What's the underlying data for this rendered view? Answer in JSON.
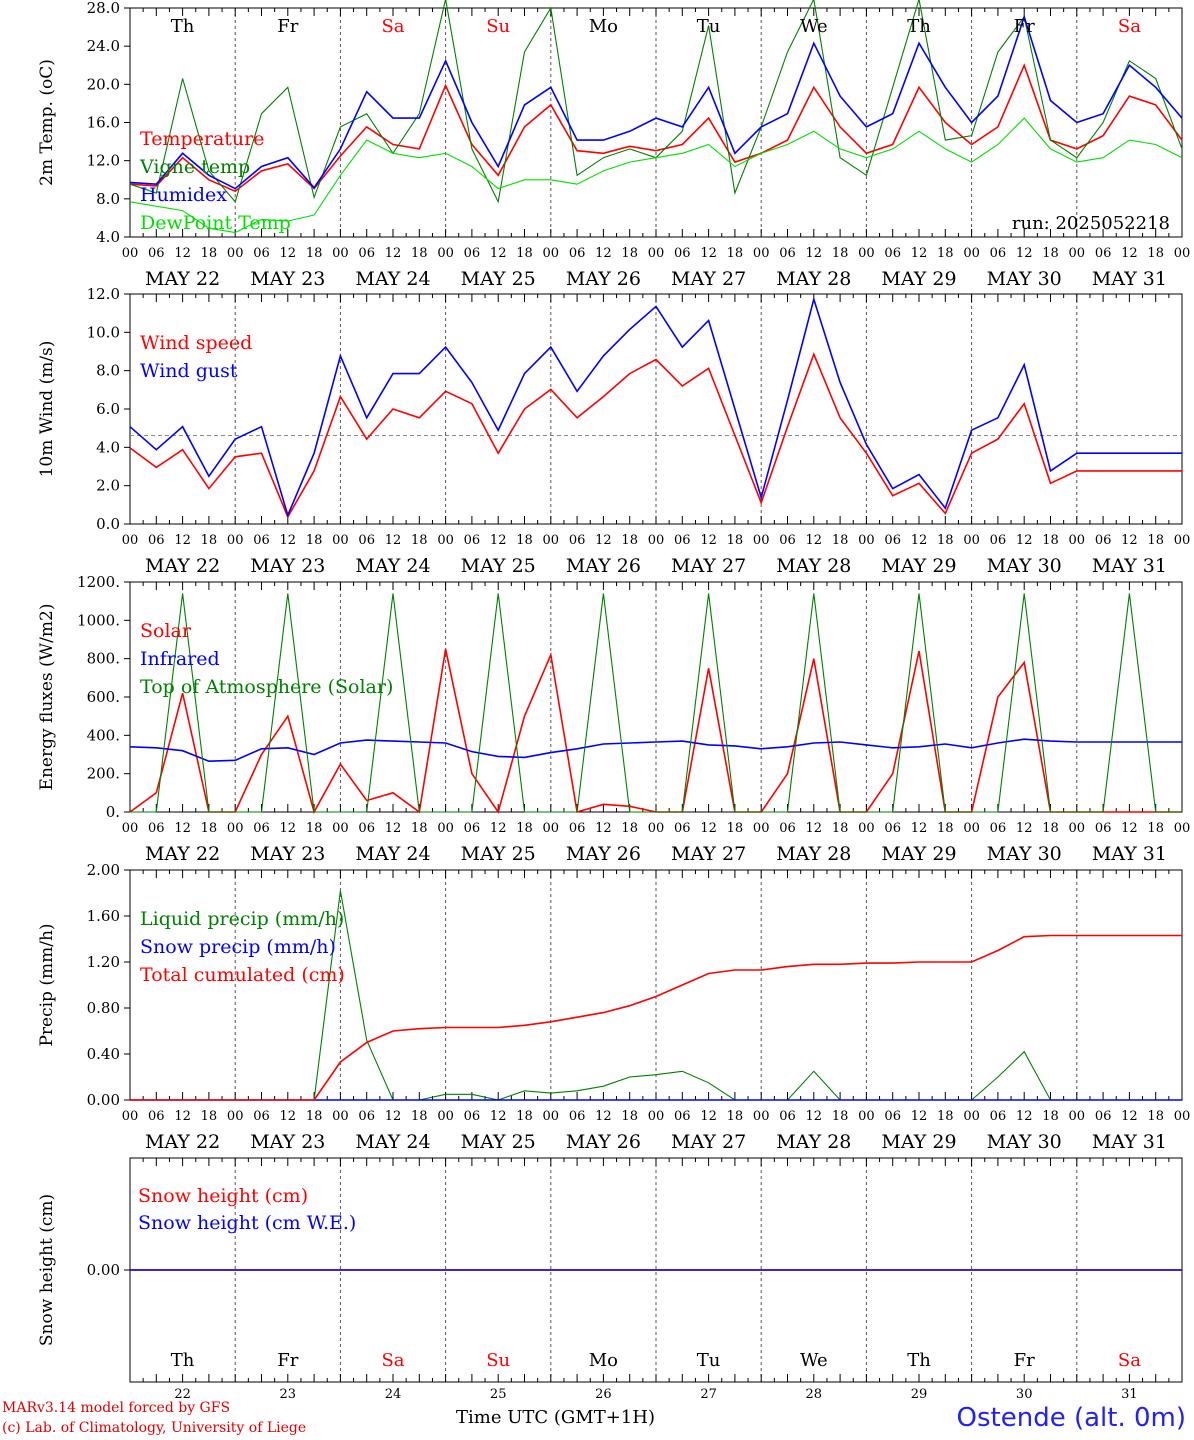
{
  "footer": {
    "model": "MARv3.14 model forced by GFS",
    "lab": "(c) Lab. of Climatology, University of Liege",
    "xaxis_title": "Time UTC (GMT+1H)",
    "station": "Ostende (alt. 0m)"
  },
  "days": {
    "names": [
      "Th",
      "Fr",
      "Sa",
      "Su",
      "Mo",
      "Tu",
      "We",
      "Th",
      "Fr",
      "Sa"
    ],
    "weekend": [
      false,
      false,
      true,
      true,
      false,
      false,
      false,
      false,
      false,
      true
    ],
    "dates": [
      "MAY 22",
      "MAY 23",
      "MAY 24",
      "MAY 25",
      "MAY 26",
      "MAY 27",
      "MAY 28",
      "MAY 29",
      "MAY 30",
      "MAY 31"
    ],
    "daynum": [
      "22",
      "23",
      "24",
      "25",
      "26",
      "27",
      "28",
      "29",
      "30",
      "31"
    ],
    "hour_ticks": [
      "00",
      "06",
      "12",
      "18"
    ]
  },
  "colors": {
    "red": "#ff0000",
    "green": "#008000",
    "blue": "#0000ff",
    "lightgreen": "#00e000",
    "weekend": "#ff0000"
  },
  "chart_data": [
    {
      "type": "line",
      "id": "temp",
      "ylabel": "2m Temp. (oC)",
      "ylim": [
        4,
        30
      ],
      "yticks": [
        "4.0",
        "8.0",
        "12.0",
        "16.0",
        "20.0",
        "24.0",
        "28.0"
      ],
      "annotation": "run: 2025052218",
      "x_hours": [
        0,
        6,
        12,
        18,
        24,
        30,
        36,
        42,
        48,
        54,
        60,
        66,
        72,
        78,
        84,
        90,
        96,
        102,
        108,
        114,
        120,
        126,
        132,
        138,
        144,
        150,
        156,
        162,
        168,
        174,
        180,
        186,
        192,
        198,
        204,
        210,
        216,
        222,
        228,
        234,
        240
      ],
      "series": [
        {
          "name": "Temperature",
          "color": "red",
          "values": [
            10.0,
            9.8,
            13.0,
            10.5,
            9.2,
            11.5,
            12.3,
            9.5,
            13.2,
            16.5,
            14.5,
            14.0,
            21.2,
            14.5,
            11.0,
            16.5,
            19.0,
            13.8,
            13.5,
            14.3,
            13.8,
            14.5,
            17.5,
            12.5,
            13.5,
            15.0,
            21.0,
            16.5,
            13.5,
            14.5,
            21.0,
            17.0,
            14.5,
            16.5,
            23.5,
            15.0,
            14.0,
            15.5,
            20.0,
            19.0,
            15.0
          ]
        },
        {
          "name": "Vigne temp",
          "color": "green",
          "values": [
            10.0,
            9.0,
            22.0,
            11.5,
            8.0,
            18.0,
            21.0,
            8.5,
            16.5,
            18.0,
            13.5,
            18.0,
            31.0,
            14.0,
            8.0,
            25.0,
            30.0,
            11.0,
            13.0,
            14.0,
            13.0,
            16.0,
            28.0,
            9.0,
            16.5,
            25.0,
            31.0,
            13.0,
            11.0,
            21.0,
            31.0,
            15.0,
            15.5,
            25.0,
            29.0,
            15.0,
            13.0,
            17.0,
            24.0,
            22.0,
            14.0
          ]
        },
        {
          "name": "Humidex",
          "color": "blue",
          "values": [
            10.2,
            10.0,
            13.5,
            11.0,
            9.5,
            12.0,
            13.0,
            9.6,
            14.0,
            20.5,
            17.5,
            17.5,
            24.0,
            17.0,
            12.0,
            19.0,
            21.0,
            15.0,
            15.0,
            16.0,
            17.5,
            16.5,
            21.0,
            13.5,
            16.5,
            18.0,
            26.0,
            20.0,
            16.5,
            18.0,
            26.0,
            21.0,
            17.0,
            20.0,
            29.0,
            19.5,
            17.0,
            18.0,
            23.5,
            21.0,
            17.5
          ]
        },
        {
          "name": "DewPoint Temp",
          "color": "lightgreen",
          "values": [
            8.0,
            7.5,
            7.0,
            5.0,
            4.5,
            6.0,
            5.8,
            6.5,
            11.0,
            15.0,
            13.5,
            13.0,
            13.5,
            12.0,
            9.5,
            10.5,
            10.5,
            10.0,
            11.5,
            12.5,
            13.0,
            13.5,
            14.5,
            12.0,
            13.5,
            14.5,
            16.0,
            14.0,
            13.0,
            14.0,
            16.0,
            14.0,
            12.5,
            14.5,
            17.5,
            14.0,
            12.5,
            13.0,
            15.0,
            14.5,
            13.0
          ]
        }
      ]
    },
    {
      "type": "line",
      "id": "wind",
      "ylabel": "10m Wind (m/s)",
      "ylim": [
        0,
        13
      ],
      "yticks": [
        "0.0",
        "2.0",
        "4.0",
        "6.0",
        "8.0",
        "10.0",
        "12.0"
      ],
      "refline": 5.0,
      "x_hours": [
        0,
        6,
        12,
        18,
        24,
        30,
        36,
        42,
        48,
        54,
        60,
        66,
        72,
        78,
        84,
        90,
        96,
        102,
        108,
        114,
        120,
        126,
        132,
        138,
        144,
        150,
        156,
        162,
        168,
        174,
        180,
        186,
        192,
        198,
        204,
        210,
        216,
        222,
        228,
        234,
        240
      ],
      "series": [
        {
          "name": "Wind speed",
          "color": "red",
          "values": [
            4.3,
            3.2,
            4.2,
            2.0,
            3.8,
            4.0,
            0.4,
            3.0,
            7.2,
            4.8,
            6.5,
            6.0,
            7.5,
            6.8,
            4.0,
            6.5,
            7.6,
            6.0,
            7.2,
            8.5,
            9.3,
            7.8,
            8.8,
            5.0,
            1.2,
            5.5,
            9.6,
            6.0,
            4.0,
            1.6,
            2.3,
            0.6,
            4.0,
            4.8,
            6.8,
            2.3,
            3.0,
            3.0,
            3.0,
            3.0,
            3.0
          ]
        },
        {
          "name": "Wind gust",
          "color": "blue",
          "values": [
            5.5,
            4.2,
            5.5,
            2.7,
            4.8,
            5.5,
            0.5,
            4.0,
            9.5,
            6.0,
            8.5,
            8.5,
            10.0,
            8.0,
            5.3,
            8.5,
            10.0,
            7.5,
            9.5,
            11.0,
            12.3,
            10.0,
            11.5,
            6.5,
            1.5,
            7.0,
            12.7,
            8.0,
            4.5,
            2.0,
            2.8,
            0.9,
            5.3,
            6.0,
            9.0,
            3.0,
            4.0,
            4.0,
            4.0,
            4.0,
            4.0
          ]
        }
      ]
    },
    {
      "type": "line",
      "id": "energy",
      "ylabel": "Energy fluxes (W/m2)",
      "ylim": [
        0,
        1200
      ],
      "yticks": [
        "0.",
        "200.",
        "400.",
        "600.",
        "800.",
        "1000.",
        "1200."
      ],
      "x_hours": [
        0,
        6,
        12,
        18,
        24,
        30,
        36,
        42,
        48,
        54,
        60,
        66,
        72,
        78,
        84,
        90,
        96,
        102,
        108,
        114,
        120,
        126,
        132,
        138,
        144,
        150,
        156,
        162,
        168,
        174,
        180,
        186,
        192,
        198,
        204,
        210,
        216,
        222,
        228,
        234,
        240
      ],
      "series": [
        {
          "name": "Solar",
          "color": "red",
          "values": [
            0,
            100,
            620,
            0,
            0,
            300,
            500,
            0,
            250,
            60,
            100,
            0,
            850,
            200,
            0,
            500,
            820,
            0,
            40,
            30,
            0,
            0,
            750,
            0,
            0,
            200,
            800,
            0,
            0,
            200,
            840,
            0,
            0,
            600,
            780,
            0,
            0,
            0,
            0,
            0,
            0
          ]
        },
        {
          "name": "Infrared",
          "color": "blue",
          "values": [
            340,
            335,
            320,
            265,
            270,
            330,
            335,
            300,
            360,
            375,
            370,
            365,
            360,
            315,
            290,
            285,
            310,
            330,
            355,
            360,
            365,
            370,
            350,
            345,
            330,
            340,
            360,
            365,
            350,
            335,
            340,
            355,
            335,
            360,
            380,
            370,
            365,
            365,
            365,
            365,
            365
          ]
        },
        {
          "name": "Top of Atmosphere (Solar)",
          "color": "green",
          "values": [
            0,
            0,
            1140,
            0,
            0,
            0,
            1140,
            0,
            0,
            0,
            1140,
            0,
            0,
            0,
            1140,
            0,
            0,
            0,
            1140,
            0,
            0,
            0,
            1140,
            0,
            0,
            0,
            1140,
            0,
            0,
            0,
            1140,
            0,
            0,
            0,
            1140,
            0,
            0,
            0,
            1140,
            0,
            0
          ]
        }
      ]
    },
    {
      "type": "line",
      "id": "precip",
      "ylabel": "Precip (mm/h)",
      "ylim": [
        0,
        2.0
      ],
      "yticks": [
        "0.00",
        "0.40",
        "0.80",
        "1.20",
        "1.60",
        "2.00"
      ],
      "x_hours": [
        0,
        6,
        12,
        18,
        24,
        30,
        36,
        42,
        48,
        54,
        60,
        66,
        72,
        78,
        84,
        90,
        96,
        102,
        108,
        114,
        120,
        126,
        132,
        138,
        144,
        150,
        156,
        162,
        168,
        174,
        180,
        186,
        192,
        198,
        204,
        210,
        216,
        222,
        228,
        234,
        240
      ],
      "series": [
        {
          "name": "Liquid precip (mm/h)",
          "color": "green",
          "values": [
            0,
            0,
            0,
            0,
            0,
            0,
            0,
            0,
            1.82,
            0.52,
            0.0,
            0.0,
            0.05,
            0.05,
            0.0,
            0.08,
            0.06,
            0.08,
            0.12,
            0.2,
            0.22,
            0.25,
            0.15,
            0.0,
            0.0,
            0.0,
            0.25,
            0.0,
            0.0,
            0.0,
            0.0,
            0.0,
            0.0,
            0.2,
            0.42,
            0.0,
            0.0,
            0.0,
            0.0,
            0.0,
            0.0
          ]
        },
        {
          "name": "Snow precip (mm/h)",
          "color": "blue",
          "values": [
            0,
            0,
            0,
            0,
            0,
            0,
            0,
            0,
            0,
            0,
            0,
            0,
            0,
            0,
            0,
            0,
            0,
            0,
            0,
            0,
            0,
            0,
            0,
            0,
            0,
            0,
            0,
            0,
            0,
            0,
            0,
            0,
            0,
            0,
            0,
            0,
            0,
            0,
            0,
            0,
            0
          ]
        },
        {
          "name": "Total cumulated (cm)",
          "color": "red",
          "values": [
            0,
            0,
            0,
            0,
            0,
            0,
            0,
            0,
            0.33,
            0.5,
            0.6,
            0.62,
            0.63,
            0.63,
            0.63,
            0.65,
            0.68,
            0.72,
            0.76,
            0.82,
            0.9,
            1.0,
            1.1,
            1.13,
            1.13,
            1.16,
            1.18,
            1.18,
            1.19,
            1.19,
            1.2,
            1.2,
            1.2,
            1.3,
            1.42,
            1.43,
            1.43,
            1.43,
            1.43,
            1.43,
            1.43
          ]
        }
      ]
    },
    {
      "type": "line",
      "id": "snow",
      "ylabel": "Snow height (cm)",
      "ylim": [
        -1,
        1
      ],
      "yticks": [
        "0.00"
      ],
      "x_hours": [
        0,
        240
      ],
      "series": [
        {
          "name": "Snow height (cm)",
          "color": "red",
          "values": [
            0,
            0
          ]
        },
        {
          "name": "Snow height (cm W.E.)",
          "color": "blue",
          "values": [
            0,
            0
          ]
        }
      ]
    }
  ]
}
